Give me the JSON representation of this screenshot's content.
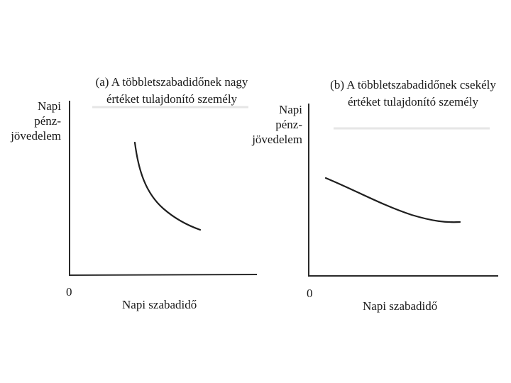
{
  "panels": [
    {
      "title_line1": "(a) A többletszabadidőnek nagy",
      "title_line2": "értéket tulajdonító személy",
      "y_label": [
        "Napi",
        "pénz-",
        "jövedelem"
      ],
      "origin": "0",
      "x_label": "Napi szabadidő",
      "curve": "steep-convex-decreasing"
    },
    {
      "title_line1": "(b) A többletszabadidőnek csekély",
      "title_line2": "értéket tulajdonító személy",
      "y_label": [
        "Napi",
        "pénz-",
        "jövedelem"
      ],
      "origin": "0",
      "x_label": "Napi szabadidő",
      "curve": "flat-convex-decreasing"
    }
  ]
}
